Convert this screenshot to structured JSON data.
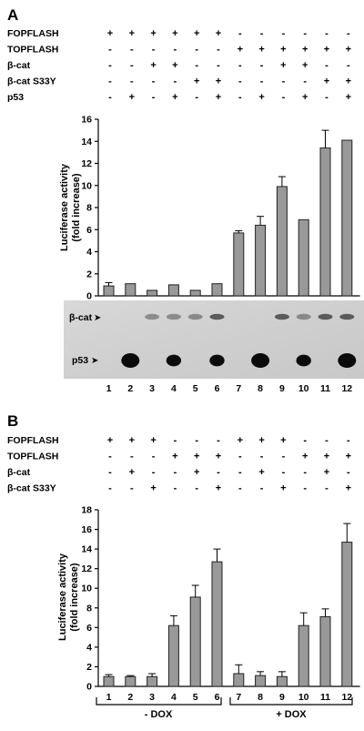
{
  "panels": [
    {
      "label": "A",
      "conditions": [
        {
          "name": "FOPFLASH",
          "values": [
            "+",
            "+",
            "+",
            "+",
            "+",
            "+",
            "-",
            "-",
            "-",
            "-",
            "-",
            "-"
          ]
        },
        {
          "name": "TOPFLASH",
          "values": [
            "-",
            "-",
            "-",
            "-",
            "-",
            "-",
            "+",
            "+",
            "+",
            "+",
            "+",
            "+"
          ]
        },
        {
          "name": "β-cat",
          "values": [
            "-",
            "-",
            "+",
            "+",
            "-",
            "-",
            "-",
            "-",
            "+",
            "+",
            "-",
            "-"
          ]
        },
        {
          "name": "β-cat S33Y",
          "values": [
            "-",
            "-",
            "-",
            "-",
            "+",
            "+",
            "-",
            "-",
            "-",
            "-",
            "+",
            "+"
          ]
        },
        {
          "name": "p53",
          "values": [
            "-",
            "+",
            "-",
            "+",
            "-",
            "+",
            "-",
            "+",
            "-",
            "+",
            "-",
            "+"
          ]
        }
      ],
      "blot_labels": [
        "β-cat",
        "p53"
      ],
      "lanes": [
        "1",
        "2",
        "3",
        "4",
        "5",
        "6",
        "7",
        "8",
        "9",
        "10",
        "11",
        "12"
      ]
    },
    {
      "label": "B",
      "conditions": [
        {
          "name": "FOPFLASH",
          "values": [
            "+",
            "+",
            "+",
            "-",
            "-",
            "-",
            "+",
            "+",
            "+",
            "-",
            "-",
            "-"
          ]
        },
        {
          "name": "TOPFLASH",
          "values": [
            "-",
            "-",
            "-",
            "+",
            "+",
            "+",
            "-",
            "-",
            "-",
            "+",
            "+",
            "+"
          ]
        },
        {
          "name": "β-cat",
          "values": [
            "-",
            "+",
            "-",
            "-",
            "+",
            "-",
            "-",
            "+",
            "-",
            "-",
            "+",
            "-"
          ]
        },
        {
          "name": "β-cat S33Y",
          "values": [
            "-",
            "-",
            "+",
            "-",
            "-",
            "+",
            "-",
            "-",
            "+",
            "-",
            "-",
            "+"
          ]
        }
      ],
      "lanes": [
        "1",
        "2",
        "3",
        "4",
        "5",
        "6",
        "7",
        "8",
        "9",
        "10",
        "11",
        "12"
      ],
      "groups": [
        "- DOX",
        "+ DOX"
      ]
    }
  ],
  "chart_data": [
    {
      "type": "bar",
      "panel": "A",
      "categories": [
        "1",
        "2",
        "3",
        "4",
        "5",
        "6",
        "7",
        "8",
        "9",
        "10",
        "11",
        "12"
      ],
      "values": [
        0.9,
        1.1,
        0.5,
        1.0,
        0.5,
        1.1,
        5.7,
        6.4,
        9.9,
        6.9,
        13.4,
        14.1
      ],
      "errors": [
        0.3,
        0.05,
        0.05,
        0.05,
        0.05,
        0.05,
        0.2,
        0.8,
        0.9,
        0.05,
        1.6,
        0.05
      ],
      "ylabel": "Luciferase activity\n(fold increase)",
      "ylabel_lines": [
        "Luciferase activity",
        "(fold increase)"
      ],
      "yticks": [
        "0",
        "2",
        "4",
        "6",
        "8",
        "10",
        "12",
        "14",
        "16"
      ],
      "ylim": [
        0,
        16
      ],
      "bar_color": "#999999"
    },
    {
      "type": "bar",
      "panel": "B",
      "categories": [
        "1",
        "2",
        "3",
        "4",
        "5",
        "6",
        "7",
        "8",
        "9",
        "10",
        "11",
        "12"
      ],
      "values": [
        1.0,
        1.0,
        1.0,
        6.2,
        9.1,
        12.7,
        1.3,
        1.1,
        1.0,
        6.2,
        7.1,
        14.7
      ],
      "errors": [
        0.2,
        0.1,
        0.3,
        1.0,
        1.2,
        1.3,
        0.9,
        0.4,
        0.5,
        1.3,
        0.8,
        1.9
      ],
      "ylabel": "Luciferase activity\n(fold increase)",
      "ylabel_lines": [
        "Luciferase activity",
        "(fold increase)"
      ],
      "yticks": [
        "0",
        "2",
        "4",
        "6",
        "8",
        "10",
        "12",
        "14",
        "16",
        "18"
      ],
      "ylim": [
        0,
        18
      ],
      "bar_color": "#999999"
    }
  ]
}
